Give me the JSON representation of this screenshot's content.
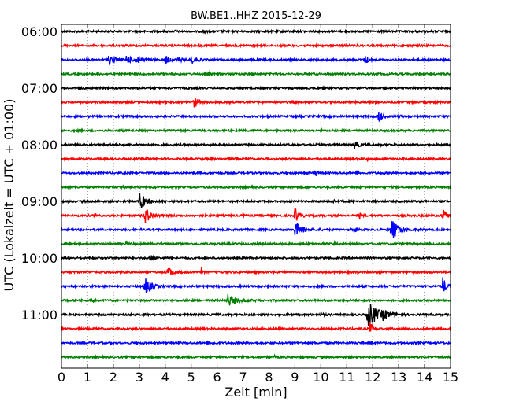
{
  "chart_data": {
    "type": "line",
    "title": "BW.BE1..HHZ 2015-12-29",
    "xlabel": "Zeit  [min]",
    "ylabel": "UTC (Lokalzeit = UTC + 01:00)",
    "xlim": [
      0,
      15
    ],
    "x_ticks": [
      "0",
      "1",
      "2",
      "3",
      "4",
      "5",
      "6",
      "7",
      "8",
      "9",
      "10",
      "11",
      "12",
      "13",
      "14",
      "15"
    ],
    "y_ticks": [
      "06:00",
      "07:00",
      "08:00",
      "09:00",
      "10:00",
      "11:00"
    ],
    "grid": "vertical dotted",
    "legend": "none",
    "color_cycle": [
      "#000000",
      "#ff0000",
      "#0000ff",
      "#008000"
    ],
    "trace_interval_min": 15,
    "series": [
      {
        "values": [
          {
            "t": 4.4,
            "a": 0.2,
            "w": 0.03
          },
          {
            "t": 5.5,
            "a": 0.25,
            "w": 0.03
          },
          {
            "t": 14,
            "a": 0.15,
            "w": 0.03
          }
        ]
      },
      {
        "values": [
          {
            "t": 5.3,
            "a": 0.15,
            "w": 0.03
          }
        ]
      },
      {
        "values": [
          {
            "t": 1.8,
            "a": 0.7,
            "w": 0.2
          },
          {
            "t": 2.5,
            "a": 0.6,
            "w": 0.15
          },
          {
            "t": 2.9,
            "a": 0.5,
            "w": 0.2
          },
          {
            "t": 4.0,
            "a": 0.6,
            "w": 0.15
          },
          {
            "t": 4.5,
            "a": 0.3,
            "w": 0.1
          },
          {
            "t": 5.0,
            "a": 0.5,
            "w": 0.15
          },
          {
            "t": 11.7,
            "a": 0.5,
            "w": 0.15
          }
        ]
      },
      {
        "values": [
          {
            "t": 5.7,
            "a": 0.3,
            "w": 0.05
          }
        ]
      },
      {
        "values": [
          {
            "t": 2.9,
            "a": 0.15,
            "w": 0.04
          }
        ]
      },
      {
        "values": [
          {
            "t": 4.0,
            "a": 0.3,
            "w": 0.04
          },
          {
            "t": 5.1,
            "a": 0.8,
            "w": 0.15
          },
          {
            "t": 11.9,
            "a": 0.3,
            "w": 0.05
          }
        ]
      },
      {
        "values": [
          {
            "t": 12.2,
            "a": 0.9,
            "w": 0.12
          },
          {
            "t": 13.0,
            "a": 0.2,
            "w": 0.05
          }
        ]
      },
      {
        "values": [
          {
            "t": 10.0,
            "a": 0.2,
            "w": 0.05
          }
        ]
      },
      {
        "values": [
          {
            "t": 11.3,
            "a": 0.8,
            "w": 0.1
          },
          {
            "t": 4.8,
            "a": 0.1,
            "w": 0.04
          }
        ]
      },
      {
        "values": [
          {
            "t": 3.3,
            "a": 0.3,
            "w": 0.04
          },
          {
            "t": 11.8,
            "a": 0.2,
            "w": 0.04
          }
        ]
      },
      {
        "values": [
          {
            "t": 9.8,
            "a": 0.4,
            "w": 0.06
          },
          {
            "t": 11.4,
            "a": 0.25,
            "w": 0.05
          }
        ]
      },
      {
        "values": [
          {
            "t": 2.3,
            "a": 0.15,
            "w": 0.04
          }
        ]
      },
      {
        "values": [
          {
            "t": 3.0,
            "a": 1.2,
            "w": 0.2
          },
          {
            "t": 10.5,
            "a": 0.2,
            "w": 0.04
          }
        ]
      },
      {
        "values": [
          {
            "t": 1.3,
            "a": 0.3,
            "w": 0.05
          },
          {
            "t": 3.2,
            "a": 1.2,
            "w": 0.2
          },
          {
            "t": 7.0,
            "a": 0.3,
            "w": 0.05
          },
          {
            "t": 9.0,
            "a": 1.0,
            "w": 0.15
          },
          {
            "t": 11.5,
            "a": 0.4,
            "w": 0.05
          },
          {
            "t": 14.7,
            "a": 0.9,
            "w": 0.12
          }
        ]
      },
      {
        "values": [
          {
            "t": 9.0,
            "a": 0.9,
            "w": 0.25
          },
          {
            "t": 11.3,
            "a": 0.5,
            "w": 0.05
          },
          {
            "t": 12.7,
            "a": 1.4,
            "w": 0.25
          }
        ]
      },
      {
        "values": [
          {
            "t": 2.5,
            "a": 0.2,
            "w": 0.05
          },
          {
            "t": 10.5,
            "a": 0.3,
            "w": 0.04
          }
        ]
      },
      {
        "values": [
          {
            "t": 3.4,
            "a": 0.5,
            "w": 0.15
          }
        ]
      },
      {
        "values": [
          {
            "t": 4.1,
            "a": 0.8,
            "w": 0.15
          },
          {
            "t": 5.4,
            "a": 0.5,
            "w": 0.03
          }
        ]
      },
      {
        "values": [
          {
            "t": 3.2,
            "a": 1.2,
            "w": 0.2
          },
          {
            "t": 14.7,
            "a": 1.2,
            "w": 0.12
          }
        ]
      },
      {
        "values": [
          {
            "t": 1.2,
            "a": 0.25,
            "w": 0.04
          },
          {
            "t": 6.4,
            "a": 0.9,
            "w": 0.25
          }
        ]
      },
      {
        "values": [
          {
            "t": 11.8,
            "a": 1.8,
            "w": 0.35
          },
          {
            "t": 12.4,
            "a": 0.4,
            "w": 0.2
          },
          {
            "t": 10.0,
            "a": 0.2,
            "w": 0.1
          },
          {
            "t": 3.2,
            "a": 0.2,
            "w": 0.06
          }
        ]
      },
      {
        "values": [
          {
            "t": 11.9,
            "a": 0.8,
            "w": 0.1
          }
        ]
      },
      {
        "values": [
          {
            "t": 5.9,
            "a": 0.3,
            "w": 0.04
          }
        ]
      },
      {
        "values": [
          {
            "t": 8.2,
            "a": 0.2,
            "w": 0.04
          }
        ]
      }
    ]
  }
}
